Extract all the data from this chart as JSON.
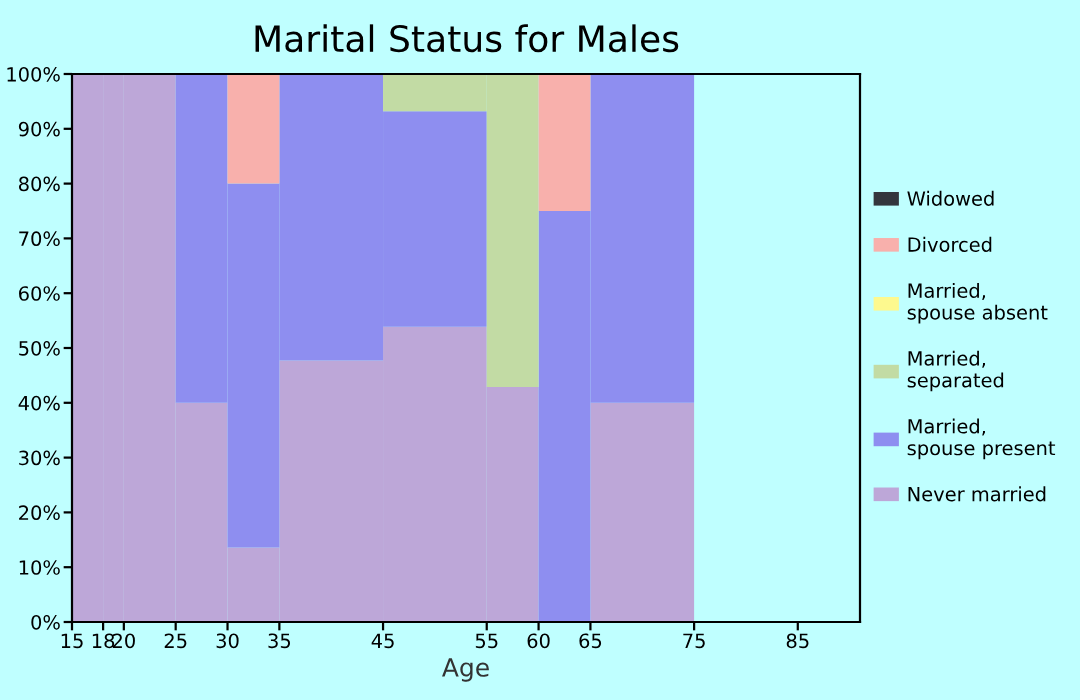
{
  "chart_data": {
    "type": "bar",
    "stacked": true,
    "title": "Marital Status for Males",
    "xlabel": "Age",
    "x": [
      16.5,
      19,
      22.5,
      27.5,
      32.5,
      40,
      50,
      57.5,
      62.5,
      70
    ],
    "xlim": [
      15,
      91
    ],
    "xticks": [
      15,
      18,
      20,
      25,
      30,
      35,
      45,
      55,
      60,
      65,
      75,
      85
    ],
    "ylim": [
      0,
      100
    ],
    "yticks": [
      {
        "value": 0,
        "label": "0%"
      },
      {
        "value": 10,
        "label": "10%"
      },
      {
        "value": 20,
        "label": "20%"
      },
      {
        "value": 30,
        "label": "30%"
      },
      {
        "value": 40,
        "label": "40%"
      },
      {
        "value": 50,
        "label": "50%"
      },
      {
        "value": 60,
        "label": "60%"
      },
      {
        "value": 70,
        "label": "70%"
      },
      {
        "value": 80,
        "label": "80%"
      },
      {
        "value": 90,
        "label": "90%"
      },
      {
        "value": 100,
        "label": "100%"
      }
    ],
    "grid": false,
    "legend": "right",
    "series": [
      {
        "name": "Never married",
        "color": "#bda7d8",
        "values": [
          100,
          100,
          100,
          40,
          13.6,
          47.7,
          53.9,
          42.9,
          0,
          40
        ]
      },
      {
        "name": "Married, spouse present",
        "color": "#8e8ef0",
        "values": [
          0,
          0,
          0,
          60,
          66.4,
          52.3,
          39.3,
          0,
          75,
          60
        ]
      },
      {
        "name": "Married, separated",
        "color": "#c2dba4",
        "values": [
          0,
          0,
          0,
          0,
          0,
          0,
          6.8,
          57.1,
          0,
          0
        ]
      },
      {
        "name": "Married, spouse absent",
        "color": "#fdf98e",
        "values": [
          0,
          0,
          0,
          0,
          0,
          0,
          0,
          0,
          0,
          0
        ]
      },
      {
        "name": "Divorced",
        "color": "#f8b0ac",
        "values": [
          0,
          0,
          0,
          0,
          20,
          0,
          0,
          0,
          25,
          0
        ]
      },
      {
        "name": "Widowed",
        "color": "#33363d",
        "values": [
          0,
          0,
          0,
          0,
          0,
          0,
          0,
          0,
          0,
          0
        ]
      }
    ]
  }
}
